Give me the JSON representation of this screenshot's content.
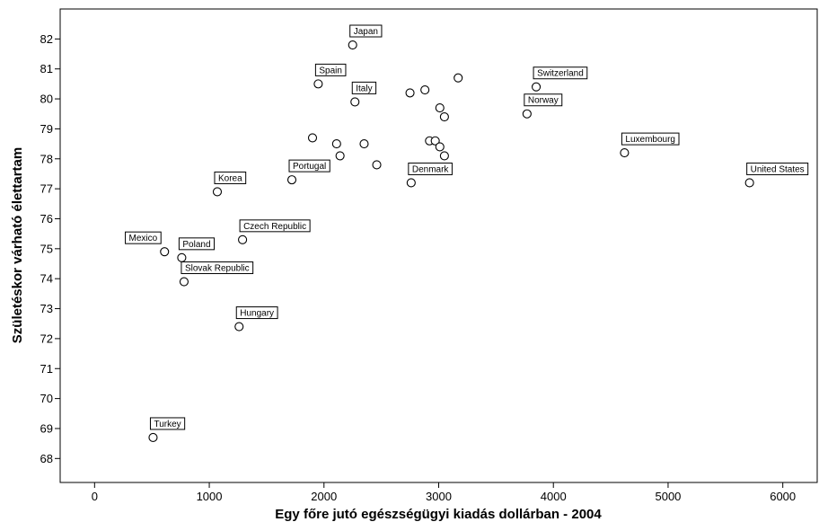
{
  "chart_data": {
    "type": "scatter",
    "title": "",
    "xlabel": "Egy főre jutó egészségügyi kiadás dollárban - 2004",
    "ylabel": "Születéskor várható élettartam",
    "xlim": [
      -300,
      6300
    ],
    "ylim": [
      67.2,
      83.0
    ],
    "xticks": [
      0,
      1000,
      2000,
      3000,
      4000,
      5000,
      6000
    ],
    "yticks": [
      68,
      69,
      70,
      71,
      72,
      73,
      74,
      75,
      76,
      77,
      78,
      79,
      80,
      81,
      82
    ],
    "grid": false,
    "legend": "none",
    "marker_color": "#000000",
    "points": [
      {
        "x": 2250,
        "y": 81.8,
        "label": "Japan"
      },
      {
        "x": 1950,
        "y": 80.5,
        "label": "Spain"
      },
      {
        "x": 2270,
        "y": 79.9,
        "label": "Italy"
      },
      {
        "x": 3850,
        "y": 80.4,
        "label": "Switzerland"
      },
      {
        "x": 3770,
        "y": 79.5,
        "label": "Norway"
      },
      {
        "x": 4620,
        "y": 78.2,
        "label": "Luxembourg"
      },
      {
        "x": 5710,
        "y": 77.2,
        "label": "United States"
      },
      {
        "x": 2760,
        "y": 77.2,
        "label": "Denmark"
      },
      {
        "x": 1720,
        "y": 77.3,
        "label": "Portugal"
      },
      {
        "x": 1070,
        "y": 76.9,
        "label": "Korea"
      },
      {
        "x": 1290,
        "y": 75.3,
        "label": "Czech Republic"
      },
      {
        "x": 610,
        "y": 74.9,
        "label": "Mexico"
      },
      {
        "x": 760,
        "y": 74.7,
        "label": "Poland"
      },
      {
        "x": 780,
        "y": 73.9,
        "label": "Slovak Republic"
      },
      {
        "x": 1260,
        "y": 72.4,
        "label": "Hungary"
      },
      {
        "x": 510,
        "y": 68.7,
        "label": "Turkey"
      },
      {
        "x": 3170,
        "y": 80.7,
        "label": ""
      },
      {
        "x": 2880,
        "y": 80.3,
        "label": ""
      },
      {
        "x": 2750,
        "y": 80.2,
        "label": ""
      },
      {
        "x": 3010,
        "y": 79.7,
        "label": ""
      },
      {
        "x": 3050,
        "y": 79.4,
        "label": ""
      },
      {
        "x": 1900,
        "y": 78.7,
        "label": ""
      },
      {
        "x": 2920,
        "y": 78.6,
        "label": ""
      },
      {
        "x": 2970,
        "y": 78.6,
        "label": ""
      },
      {
        "x": 2110,
        "y": 78.5,
        "label": ""
      },
      {
        "x": 2350,
        "y": 78.5,
        "label": ""
      },
      {
        "x": 3010,
        "y": 78.4,
        "label": ""
      },
      {
        "x": 2140,
        "y": 78.1,
        "label": ""
      },
      {
        "x": 3050,
        "y": 78.1,
        "label": ""
      },
      {
        "x": 2460,
        "y": 77.8,
        "label": ""
      }
    ]
  }
}
